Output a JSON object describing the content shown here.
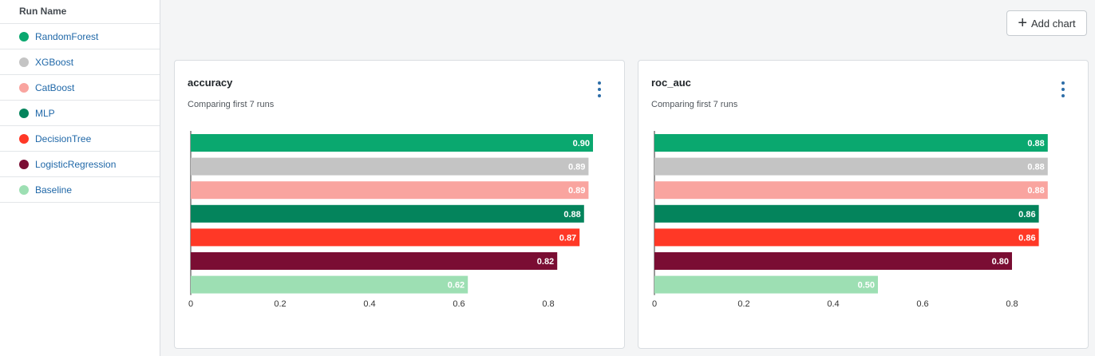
{
  "sidebar": {
    "header": "Run Name",
    "runs": [
      {
        "name": "RandomForest",
        "color": "#0aa86f"
      },
      {
        "name": "XGBoost",
        "color": "#c4c4c4"
      },
      {
        "name": "CatBoost",
        "color": "#f9a49f"
      },
      {
        "name": "MLP",
        "color": "#04845c"
      },
      {
        "name": "DecisionTree",
        "color": "#ff3826"
      },
      {
        "name": "LogisticRegression",
        "color": "#7a0d33"
      },
      {
        "name": "Baseline",
        "color": "#9ddfb3"
      }
    ]
  },
  "toolbar": {
    "add_chart_label": "Add chart",
    "add_chart_icon": "plus-icon"
  },
  "charts": [
    {
      "title": "accuracy",
      "subtitle": "Comparing first 7 runs",
      "menu_icon": "kebab-menu-icon"
    },
    {
      "title": "roc_auc",
      "subtitle": "Comparing first 7 runs",
      "menu_icon": "kebab-menu-icon"
    }
  ],
  "chart_data": [
    {
      "type": "bar",
      "orientation": "horizontal",
      "title": "accuracy",
      "subtitle": "Comparing first 7 runs",
      "categories": [
        "RandomForest",
        "XGBoost",
        "CatBoost",
        "MLP",
        "DecisionTree",
        "LogisticRegression",
        "Baseline"
      ],
      "values": [
        0.9,
        0.89,
        0.89,
        0.88,
        0.87,
        0.82,
        0.62
      ],
      "value_labels": [
        "0.90",
        "0.89",
        "0.89",
        "0.88",
        "0.87",
        "0.82",
        "0.62"
      ],
      "colors": [
        "#0aa86f",
        "#c4c4c4",
        "#f9a49f",
        "#04845c",
        "#ff3826",
        "#7a0d33",
        "#9ddfb3"
      ],
      "xticks": [
        "0",
        "0.2",
        "0.4",
        "0.6",
        "0.8"
      ],
      "xlim": [
        0,
        0.9
      ],
      "grid": false
    },
    {
      "type": "bar",
      "orientation": "horizontal",
      "title": "roc_auc",
      "subtitle": "Comparing first 7 runs",
      "categories": [
        "RandomForest",
        "XGBoost",
        "CatBoost",
        "MLP",
        "DecisionTree",
        "LogisticRegression",
        "Baseline"
      ],
      "values": [
        0.88,
        0.88,
        0.88,
        0.86,
        0.86,
        0.8,
        0.5
      ],
      "value_labels": [
        "0.88",
        "0.88",
        "0.88",
        "0.86",
        "0.86",
        "0.80",
        "0.50"
      ],
      "colors": [
        "#0aa86f",
        "#c4c4c4",
        "#f9a49f",
        "#04845c",
        "#ff3826",
        "#7a0d33",
        "#9ddfb3"
      ],
      "xticks": [
        "0",
        "0.2",
        "0.4",
        "0.6",
        "0.8"
      ],
      "xlim": [
        0,
        0.88
      ],
      "grid": false
    }
  ]
}
